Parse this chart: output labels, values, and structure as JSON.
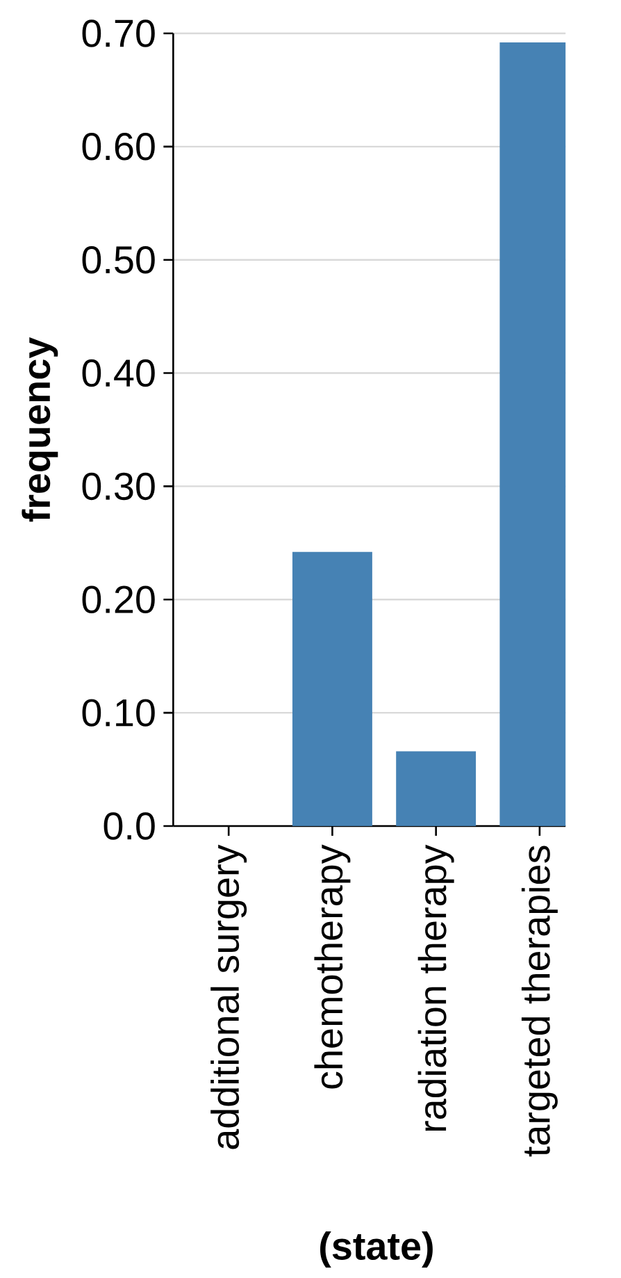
{
  "chart_data": {
    "type": "bar",
    "xlabel": "(state)",
    "ylabel": "frequency",
    "categories": [
      "additional surgery",
      "chemotherapy",
      "radiation therapy",
      "targeted therapies"
    ],
    "values": [
      0,
      0.242,
      0.066,
      0.692
    ],
    "color": "#4682b4",
    "ylim": [
      0,
      0.7
    ],
    "yticks": [
      {
        "value": 0,
        "label": "0.0"
      },
      {
        "value": 0.1,
        "label": "0.10"
      },
      {
        "value": 0.2,
        "label": "0.20"
      },
      {
        "value": 0.3,
        "label": "0.30"
      },
      {
        "value": 0.4,
        "label": "0.40"
      },
      {
        "value": 0.5,
        "label": "0.50"
      },
      {
        "value": 0.6,
        "label": "0.60"
      },
      {
        "value": 0.7,
        "label": "0.70"
      }
    ],
    "grid": "y"
  }
}
